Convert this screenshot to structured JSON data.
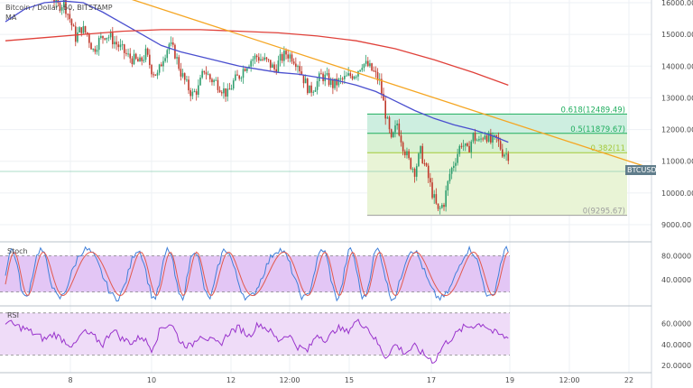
{
  "header": {
    "symbol_line": "Bitcoin / Dollar, 60, BITSTAMP",
    "ma_label": "MA"
  },
  "price_tag": "BTCUSD",
  "panels": {
    "stoch_label": "Stoch",
    "rsi_label": "RSI"
  },
  "colors": {
    "up": "#2e9e6e",
    "down": "#c0392b",
    "ma_fast": "#4a4fcf",
    "ma_slow": "#e0413a",
    "trendline": "#f5a623",
    "fib_green": "#1fae5e",
    "fib_lime": "#a3c93a",
    "stoch_fill": "#e3c6f5",
    "rsi_fill": "#efdcf8",
    "indicator_line": "#9933cc"
  },
  "chart_data": [
    {
      "type": "candlestick",
      "title": "Bitcoin / Dollar, 60, BITSTAMP",
      "y_ticks": [
        "16000.00",
        "15000.00",
        "14000.00",
        "13000.00",
        "12000.00",
        "11000.00",
        "10000.00",
        "9000.00"
      ],
      "x_ticks": [
        "8",
        "10",
        "12",
        "12:00",
        "15",
        "17",
        "19",
        "12:00",
        "22"
      ],
      "ylim": [
        8600,
        18100
      ],
      "close_path": [
        [
          0,
          16500
        ],
        [
          3,
          17000
        ],
        [
          6,
          17200
        ],
        [
          9,
          16900
        ],
        [
          12,
          17050
        ],
        [
          15,
          16700
        ],
        [
          18,
          16600
        ],
        [
          21,
          16500
        ],
        [
          24,
          16200
        ],
        [
          27,
          15900
        ],
        [
          30,
          16000
        ],
        [
          33,
          15500
        ],
        [
          36,
          14900
        ],
        [
          39,
          15200
        ],
        [
          42,
          15000
        ],
        [
          45,
          14500
        ],
        [
          48,
          14800
        ],
        [
          51,
          15000
        ],
        [
          54,
          14900
        ],
        [
          57,
          14700
        ],
        [
          60,
          14500
        ],
        [
          63,
          14300
        ],
        [
          66,
          14200
        ],
        [
          69,
          14100
        ],
        [
          72,
          14400
        ],
        [
          75,
          13900
        ],
        [
          78,
          13700
        ],
        [
          81,
          14300
        ],
        [
          84,
          14700
        ],
        [
          87,
          14400
        ],
        [
          90,
          13800
        ],
        [
          93,
          13400
        ],
        [
          96,
          13100
        ],
        [
          99,
          13300
        ],
        [
          102,
          13900
        ],
        [
          105,
          13600
        ],
        [
          108,
          13500
        ],
        [
          111,
          13300
        ],
        [
          114,
          13100
        ],
        [
          117,
          13500
        ],
        [
          120,
          13700
        ],
        [
          123,
          14000
        ],
        [
          126,
          14200
        ],
        [
          129,
          14300
        ],
        [
          132,
          14200
        ],
        [
          135,
          14100
        ],
        [
          138,
          13900
        ],
        [
          141,
          14200
        ],
        [
          144,
          14400
        ],
        [
          147,
          14300
        ],
        [
          150,
          14100
        ],
        [
          153,
          13600
        ],
        [
          156,
          13200
        ],
        [
          159,
          13400
        ],
        [
          162,
          13700
        ],
        [
          165,
          13600
        ],
        [
          168,
          13400
        ],
        [
          171,
          13500
        ],
        [
          174,
          13600
        ],
        [
          177,
          13700
        ],
        [
          180,
          13800
        ],
        [
          183,
          14100
        ],
        [
          186,
          14000
        ],
        [
          189,
          13800
        ],
        [
          192,
          13500
        ],
        [
          195,
          12500
        ],
        [
          198,
          11600
        ],
        [
          201,
          12200
        ],
        [
          204,
          11500
        ],
        [
          207,
          11000
        ],
        [
          210,
          10700
        ],
        [
          213,
          11300
        ],
        [
          216,
          10700
        ],
        [
          219,
          10000
        ],
        [
          222,
          9400
        ],
        [
          225,
          9700
        ],
        [
          228,
          10600
        ],
        [
          231,
          11100
        ],
        [
          234,
          11600
        ],
        [
          237,
          11300
        ],
        [
          240,
          11800
        ],
        [
          243,
          11600
        ],
        [
          246,
          11900
        ],
        [
          249,
          11600
        ],
        [
          252,
          11700
        ],
        [
          255,
          11300
        ],
        [
          258,
          11200
        ]
      ],
      "series": [
        {
          "name": "MA",
          "role": "fast",
          "values": [
            [
              0,
              15400
            ],
            [
              10,
              15800
            ],
            [
              20,
              16000
            ],
            [
              30,
              16050
            ],
            [
              40,
              16000
            ],
            [
              50,
              15700
            ],
            [
              60,
              15350
            ],
            [
              70,
              15000
            ],
            [
              80,
              14650
            ],
            [
              90,
              14450
            ],
            [
              100,
              14300
            ],
            [
              110,
              14150
            ],
            [
              120,
              14000
            ],
            [
              130,
              13900
            ],
            [
              140,
              13800
            ],
            [
              150,
              13750
            ],
            [
              160,
              13650
            ],
            [
              170,
              13550
            ],
            [
              180,
              13400
            ],
            [
              190,
              13200
            ],
            [
              200,
              12900
            ],
            [
              210,
              12600
            ],
            [
              220,
              12350
            ],
            [
              230,
              12150
            ],
            [
              240,
              12000
            ],
            [
              250,
              11800
            ],
            [
              258,
              11600
            ]
          ]
        },
        {
          "name": "MA",
          "role": "slow",
          "values": [
            [
              0,
              14800
            ],
            [
              20,
              14900
            ],
            [
              40,
              15000
            ],
            [
              60,
              15100
            ],
            [
              80,
              15150
            ],
            [
              100,
              15150
            ],
            [
              120,
              15100
            ],
            [
              140,
              15050
            ],
            [
              160,
              14950
            ],
            [
              180,
              14800
            ],
            [
              200,
              14550
            ],
            [
              220,
              14200
            ],
            [
              240,
              13800
            ],
            [
              258,
              13400
            ]
          ]
        }
      ],
      "trendline": [
        [
          0,
          17400
        ],
        [
          330,
          10800
        ]
      ],
      "fibonacci": {
        "levels": [
          {
            "label": "0.618(12489.49)",
            "value": 12489.49
          },
          {
            "label": "0.5(11879.67)",
            "value": 11879.67
          },
          {
            "label": "0.382(11",
            "value": 11270
          },
          {
            "label": "0(9295.67)",
            "value": 9295.67
          }
        ]
      }
    },
    {
      "type": "line",
      "title": "Stoch",
      "y_ticks": [
        "80.0000",
        "40.0000"
      ],
      "ylim": [
        0,
        100
      ],
      "band": [
        20,
        80
      ]
    },
    {
      "type": "line",
      "title": "RSI",
      "y_ticks": [
        "60.0000",
        "40.0000",
        "20.0000"
      ],
      "ylim": [
        15,
        75
      ],
      "band": [
        30,
        70
      ],
      "values": [
        [
          0,
          62
        ],
        [
          5,
          58
        ],
        [
          10,
          55
        ],
        [
          15,
          50
        ],
        [
          20,
          45
        ],
        [
          25,
          50
        ],
        [
          30,
          44
        ],
        [
          35,
          38
        ],
        [
          40,
          52
        ],
        [
          45,
          48
        ],
        [
          50,
          40
        ],
        [
          55,
          55
        ],
        [
          60,
          45
        ],
        [
          65,
          42
        ],
        [
          70,
          48
        ],
        [
          75,
          36
        ],
        [
          80,
          56
        ],
        [
          85,
          60
        ],
        [
          90,
          42
        ],
        [
          95,
          38
        ],
        [
          100,
          50
        ],
        [
          105,
          44
        ],
        [
          110,
          40
        ],
        [
          115,
          52
        ],
        [
          120,
          56
        ],
        [
          125,
          48
        ],
        [
          130,
          60
        ],
        [
          135,
          54
        ],
        [
          140,
          44
        ],
        [
          145,
          50
        ],
        [
          150,
          38
        ],
        [
          155,
          34
        ],
        [
          160,
          50
        ],
        [
          165,
          44
        ],
        [
          170,
          56
        ],
        [
          175,
          52
        ],
        [
          180,
          62
        ],
        [
          185,
          58
        ],
        [
          190,
          44
        ],
        [
          195,
          28
        ],
        [
          200,
          40
        ],
        [
          205,
          32
        ],
        [
          210,
          38
        ],
        [
          215,
          30
        ],
        [
          220,
          24
        ],
        [
          225,
          40
        ],
        [
          230,
          48
        ],
        [
          235,
          56
        ],
        [
          240,
          58
        ],
        [
          245,
          60
        ],
        [
          250,
          52
        ],
        [
          255,
          48
        ],
        [
          258,
          46
        ]
      ]
    }
  ]
}
